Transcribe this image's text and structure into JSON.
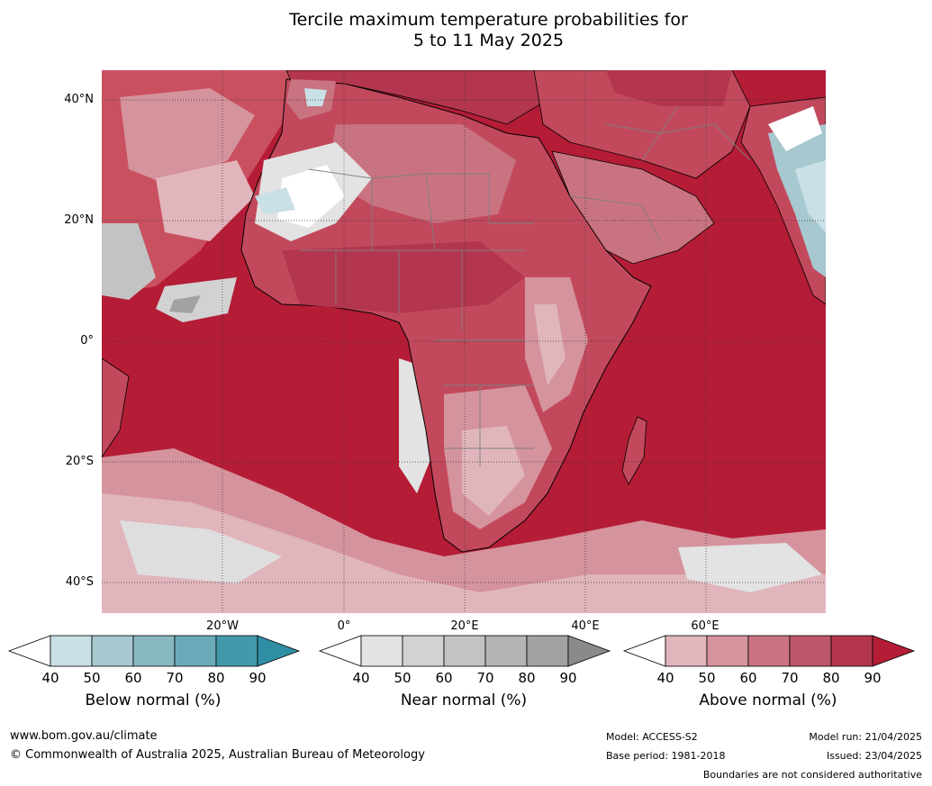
{
  "title": {
    "line1": "Tercile maximum temperature probabilities for",
    "line2": "5 to 11 May 2025"
  },
  "map": {
    "lat_labels": [
      "40°N",
      "20°N",
      "0°",
      "20°S",
      "40°S"
    ],
    "lon_labels": [
      "20°W",
      "0°",
      "20°E",
      "40°E",
      "60°E"
    ],
    "colors": {
      "ocean_base": "#b51c36",
      "land_base": "#c2495c",
      "coastline": "#000000",
      "borders": "#7f7f7f",
      "gridlines": "#333333"
    }
  },
  "colorbars": [
    {
      "name": "below",
      "title": "Below normal (%)",
      "ticks": [
        "40",
        "50",
        "60",
        "70",
        "80",
        "90"
      ],
      "colors": [
        "#ffffff",
        "#c9e0e6",
        "#a6c8ce",
        "#88b8c1",
        "#6aaab8",
        "#4399ab",
        "#2f8ea3"
      ]
    },
    {
      "name": "near",
      "title": "Near normal (%)",
      "ticks": [
        "40",
        "50",
        "60",
        "70",
        "80",
        "90"
      ],
      "colors": [
        "#ffffff",
        "#e3e3e3",
        "#d2d2d2",
        "#c3c3c3",
        "#b4b4b4",
        "#a2a2a2",
        "#8a8a8a"
      ]
    },
    {
      "name": "above",
      "title": "Above normal (%)",
      "ticks": [
        "40",
        "50",
        "60",
        "70",
        "80",
        "90"
      ],
      "colors": [
        "#ffffff",
        "#e1b5bc",
        "#d5939d",
        "#c97380",
        "#bd5669",
        "#b3364e",
        "#b51c36"
      ]
    }
  ],
  "footer": {
    "website": "www.bom.gov.au/climate",
    "copyright": "© Commonwealth of Australia 2025, Australian Bureau of Meteorology",
    "model": "Model: ACCESS-S2",
    "base_period": "Base period: 1981-2018",
    "model_run": "Model run: 21/04/2025",
    "issued": "Issued: 23/04/2025",
    "disclaimer": "Boundaries are not considered authoritative"
  }
}
